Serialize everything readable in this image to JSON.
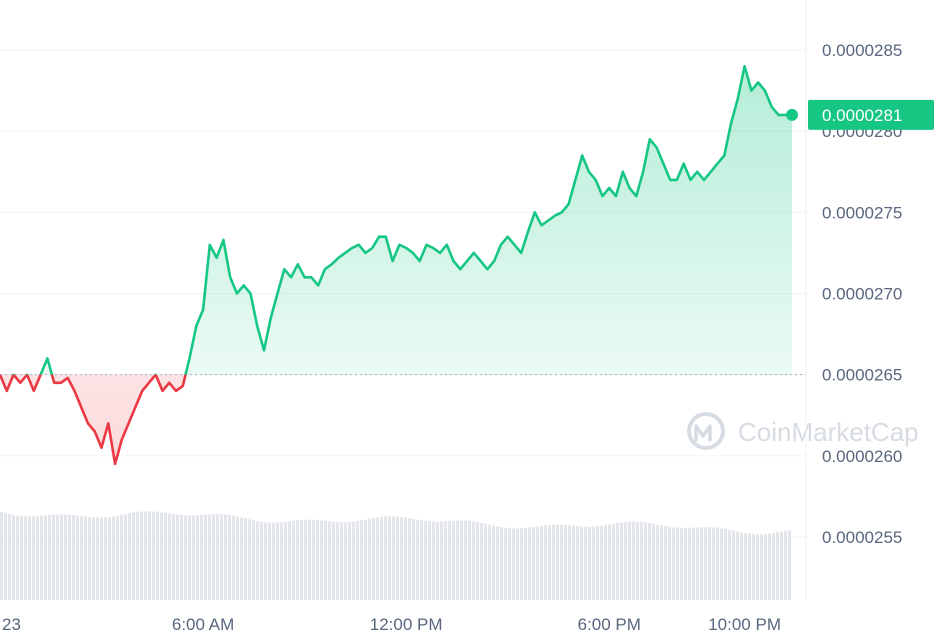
{
  "chart_data": {
    "type": "line",
    "y_tick_labels": [
      "0.0000285",
      "0.0000280",
      "0.0000275",
      "0.0000270",
      "0.0000265",
      "0.0000260",
      "0.0000255"
    ],
    "y_ticks": [
      2.85e-05,
      2.8e-05,
      2.75e-05,
      2.7e-05,
      2.65e-05,
      2.6e-05,
      2.55e-05
    ],
    "ylim": [
      2.5e-05,
      2.88e-05
    ],
    "x_tick_labels": [
      "23",
      "6:00 AM",
      "12:00 PM",
      "6:00 PM",
      "10:00 PM"
    ],
    "x_ticks": [
      0.5,
      6.0,
      12.0,
      18.0,
      22.0
    ],
    "xlim": [
      0.0,
      23.4
    ],
    "baseline": 2.65e-05,
    "current_price_label": "0.0000281",
    "current_price": 2.81e-05,
    "grid": true,
    "watermark": "CoinMarketCap",
    "colors": {
      "up": "#16c784",
      "down": "#ea3943",
      "grid": "#eff2f5",
      "axis_text": "#58667e",
      "volume": "#e3e6ea"
    },
    "series": [
      {
        "x": [
          0.0,
          0.2,
          0.4,
          0.6,
          0.8,
          1.0,
          1.2,
          1.4,
          1.6,
          1.8,
          2.0,
          2.2,
          2.4,
          2.6,
          2.8,
          3.0,
          3.2,
          3.4,
          3.6,
          3.8,
          4.0,
          4.2,
          4.4,
          4.6,
          4.8,
          5.0,
          5.2,
          5.4,
          5.6,
          5.8,
          6.0,
          6.2,
          6.4,
          6.6,
          6.8,
          7.0,
          7.2,
          7.4,
          7.6,
          7.8,
          8.0,
          8.2,
          8.4,
          8.6,
          8.8,
          9.0,
          9.2,
          9.4,
          9.6,
          9.8,
          10.0,
          10.2,
          10.4,
          10.6,
          10.8,
          11.0,
          11.2,
          11.4,
          11.6,
          11.8,
          12.0,
          12.2,
          12.4,
          12.6,
          12.8,
          13.0,
          13.2,
          13.4,
          13.6,
          13.8,
          14.0,
          14.2,
          14.4,
          14.6,
          14.8,
          15.0,
          15.2,
          15.4,
          15.6,
          15.8,
          16.0,
          16.2,
          16.4,
          16.6,
          16.8,
          17.0,
          17.2,
          17.4,
          17.6,
          17.8,
          18.0,
          18.2,
          18.4,
          18.6,
          18.8,
          19.0,
          19.2,
          19.4,
          19.6,
          19.8,
          20.0,
          20.2,
          20.4,
          20.6,
          20.8,
          21.0,
          21.2,
          21.4,
          21.6,
          21.8,
          22.0,
          22.2,
          22.4,
          22.6,
          22.8,
          23.0,
          23.2,
          23.4
        ],
        "values": [
          2.65e-05,
          2.64e-05,
          2.65e-05,
          2.645e-05,
          2.65e-05,
          2.64e-05,
          2.65e-05,
          2.66e-05,
          2.645e-05,
          2.645e-05,
          2.648e-05,
          2.64e-05,
          2.63e-05,
          2.62e-05,
          2.615e-05,
          2.605e-05,
          2.62e-05,
          2.595e-05,
          2.61e-05,
          2.62e-05,
          2.63e-05,
          2.64e-05,
          2.645e-05,
          2.65e-05,
          2.64e-05,
          2.645e-05,
          2.64e-05,
          2.643e-05,
          2.66e-05,
          2.68e-05,
          2.69e-05,
          2.73e-05,
          2.722e-05,
          2.733e-05,
          2.71e-05,
          2.7e-05,
          2.705e-05,
          2.7e-05,
          2.68e-05,
          2.665e-05,
          2.685e-05,
          2.7e-05,
          2.715e-05,
          2.71e-05,
          2.718e-05,
          2.71e-05,
          2.71e-05,
          2.705e-05,
          2.715e-05,
          2.718e-05,
          2.722e-05,
          2.725e-05,
          2.728e-05,
          2.73e-05,
          2.725e-05,
          2.728e-05,
          2.735e-05,
          2.735e-05,
          2.72e-05,
          2.73e-05,
          2.728e-05,
          2.725e-05,
          2.72e-05,
          2.73e-05,
          2.728e-05,
          2.725e-05,
          2.73e-05,
          2.72e-05,
          2.715e-05,
          2.72e-05,
          2.725e-05,
          2.72e-05,
          2.715e-05,
          2.72e-05,
          2.73e-05,
          2.735e-05,
          2.73e-05,
          2.725e-05,
          2.738e-05,
          2.75e-05,
          2.742e-05,
          2.745e-05,
          2.748e-05,
          2.75e-05,
          2.755e-05,
          2.77e-05,
          2.785e-05,
          2.775e-05,
          2.77e-05,
          2.76e-05,
          2.765e-05,
          2.76e-05,
          2.775e-05,
          2.765e-05,
          2.76e-05,
          2.775e-05,
          2.795e-05,
          2.79e-05,
          2.78e-05,
          2.77e-05,
          2.77e-05,
          2.78e-05,
          2.77e-05,
          2.775e-05,
          2.77e-05,
          2.775e-05,
          2.78e-05,
          2.785e-05,
          2.805e-05,
          2.82e-05,
          2.84e-05,
          2.825e-05,
          2.83e-05,
          2.825e-05,
          2.815e-05,
          2.81e-05,
          2.81e-05,
          2.81e-05
        ]
      }
    ]
  }
}
